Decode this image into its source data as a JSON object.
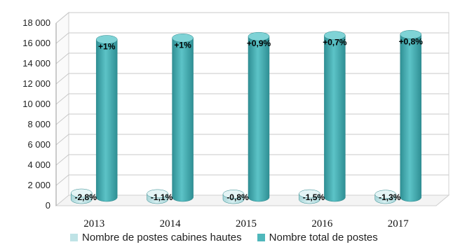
{
  "chart_data": {
    "type": "bar",
    "categories": [
      "2013",
      "2014",
      "2015",
      "2016",
      "2017"
    ],
    "series": [
      {
        "name": "Nombre de postes cabines hautes",
        "values": [
          620,
          560,
          520,
          550,
          500
        ],
        "labels": [
          "-2,8%",
          "-1,1%",
          "-0,8%",
          "-1,5%",
          "-1,3%"
        ]
      },
      {
        "name": "Nombre total de postes",
        "values": [
          15550,
          15700,
          15850,
          15950,
          16050
        ],
        "labels": [
          "+1%",
          "+1%",
          "+0,9%",
          "+0,7%",
          "+0,8%"
        ]
      }
    ],
    "y_ticks": [
      "0",
      "2 000",
      "4 000",
      "6 000",
      "8 000",
      "10 000",
      "12 000",
      "14 000",
      "16 000",
      "18 000"
    ],
    "ylim": [
      0,
      18000
    ],
    "grid": true,
    "legend": "bottom",
    "colors": {
      "series1": "#bfe3e6",
      "series2": "#4fb7bb",
      "series2_dark": "#2f8f94",
      "grid": "#c8c8c8"
    }
  }
}
